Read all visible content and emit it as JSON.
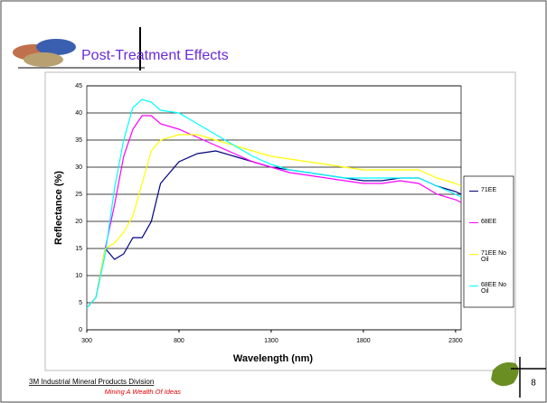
{
  "header": {
    "title": "Post-Treatment Effects"
  },
  "chart_data": {
    "type": "line",
    "xlabel": "Wavelength (nm)",
    "ylabel": "Reflectance (%)",
    "x": [
      300,
      350,
      400,
      450,
      500,
      550,
      600,
      650,
      700,
      800,
      900,
      1000,
      1100,
      1200,
      1300,
      1400,
      1500,
      1600,
      1700,
      1800,
      1900,
      2000,
      2100,
      2200,
      2300,
      2330
    ],
    "series": [
      {
        "name": "71EE",
        "color": "#000080",
        "values": [
          4,
          6,
          15,
          13,
          14,
          17,
          17,
          20,
          27,
          31,
          32.5,
          33,
          32,
          31,
          30,
          29.5,
          29,
          28.5,
          28,
          27.5,
          27.5,
          28,
          28,
          26.5,
          25.5,
          25
        ]
      },
      {
        "name": "68EE",
        "color": "#ff00ff",
        "values": [
          4,
          6,
          15,
          23,
          32,
          37,
          39.5,
          39.5,
          38,
          37,
          35.5,
          34,
          32.5,
          31,
          30,
          29,
          28.5,
          28,
          27.5,
          27,
          27,
          27.5,
          27,
          25,
          24,
          23.5
        ]
      },
      {
        "name": "71EE No Oil",
        "color": "#ffff00",
        "values": [
          4,
          6,
          15,
          16,
          18,
          21,
          27,
          33,
          35,
          36,
          36,
          35,
          34,
          33,
          32,
          31.5,
          31,
          30.5,
          30,
          29.5,
          29.5,
          29.5,
          29.5,
          28,
          27,
          26.5
        ]
      },
      {
        "name": "68EE No Oil",
        "color": "#00ffff",
        "values": [
          4,
          6,
          14,
          26,
          35,
          41,
          42.5,
          42,
          40.5,
          40,
          38,
          36,
          34,
          32,
          30.5,
          29.5,
          29,
          28.5,
          28,
          28,
          28,
          28,
          28,
          26.5,
          25,
          24.5
        ]
      }
    ],
    "xlim": [
      300,
      2330
    ],
    "xticks": [
      300,
      800,
      1300,
      1800,
      2300
    ],
    "ylim": [
      0,
      45
    ],
    "yticks": [
      0,
      5,
      10,
      15,
      20,
      25,
      30,
      35,
      40,
      45
    ],
    "grid": true,
    "legend": "right"
  },
  "footer": {
    "division": "3M Industrial Mineral Products Division",
    "tagline": "Mining A Wealth Of Ideas",
    "page": "8"
  }
}
